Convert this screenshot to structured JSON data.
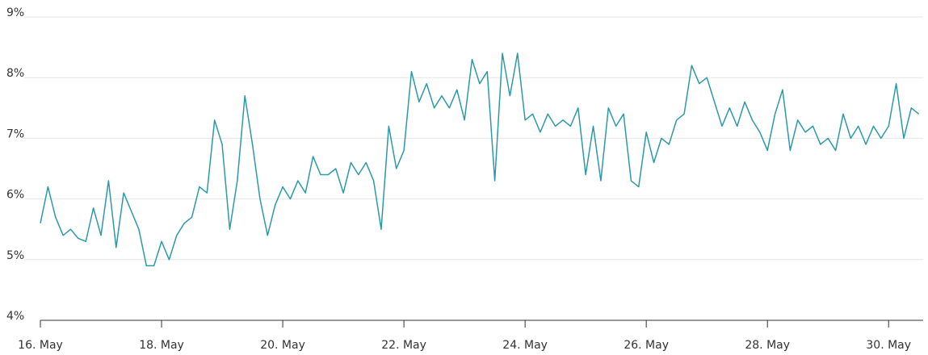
{
  "chart_data": {
    "type": "line",
    "x": [
      16,
      16.125,
      16.25,
      16.375,
      16.5,
      16.625,
      16.75,
      16.875,
      17,
      17.125,
      17.25,
      17.375,
      17.5,
      17.625,
      17.75,
      17.875,
      18,
      18.125,
      18.25,
      18.375,
      18.5,
      18.625,
      18.75,
      18.875,
      19,
      19.125,
      19.25,
      19.375,
      19.5,
      19.625,
      19.75,
      19.875,
      20,
      20.125,
      20.25,
      20.375,
      20.5,
      20.625,
      20.75,
      20.875,
      21,
      21.125,
      21.25,
      21.375,
      21.5,
      21.625,
      21.75,
      21.875,
      22,
      22.125,
      22.25,
      22.375,
      22.5,
      22.625,
      22.75,
      22.875,
      23,
      23.125,
      23.25,
      23.375,
      23.5,
      23.625,
      23.75,
      23.875,
      24,
      24.125,
      24.25,
      24.375,
      24.5,
      24.625,
      24.75,
      24.875,
      25,
      25.125,
      25.25,
      25.375,
      25.5,
      25.625,
      25.75,
      25.875,
      26,
      26.125,
      26.25,
      26.375,
      26.5,
      26.625,
      26.75,
      26.875,
      27,
      27.125,
      27.25,
      27.375,
      27.5,
      27.625,
      27.75,
      27.875,
      28,
      28.125,
      28.25,
      28.375,
      28.5,
      28.625,
      28.75,
      28.875,
      29,
      29.125,
      29.25,
      29.375,
      29.5,
      29.625,
      29.75,
      29.875,
      30,
      30.125,
      30.25,
      30.375,
      30.5
    ],
    "series": [
      {
        "color": "#2b9aa8",
        "values": [
          5.6,
          6.2,
          5.7,
          5.4,
          5.5,
          5.35,
          5.3,
          5.85,
          5.4,
          6.3,
          5.2,
          6.1,
          5.8,
          5.5,
          4.9,
          4.9,
          5.3,
          5.0,
          5.4,
          5.6,
          5.7,
          6.2,
          6.1,
          7.3,
          6.9,
          5.5,
          6.3,
          7.7,
          6.9,
          6.0,
          5.4,
          5.9,
          6.2,
          6.0,
          6.3,
          6.1,
          6.7,
          6.4,
          6.4,
          6.5,
          6.1,
          6.6,
          6.4,
          6.6,
          6.3,
          5.5,
          7.2,
          6.5,
          6.8,
          8.1,
          7.6,
          7.9,
          7.5,
          7.7,
          7.5,
          7.8,
          7.3,
          8.3,
          7.9,
          8.1,
          6.3,
          8.4,
          7.7,
          8.4,
          7.3,
          7.4,
          7.1,
          7.4,
          7.2,
          7.3,
          7.2,
          7.5,
          6.4,
          7.2,
          6.3,
          7.5,
          7.2,
          7.4,
          6.3,
          6.2,
          7.1,
          6.6,
          7.0,
          6.9,
          7.3,
          7.4,
          8.2,
          7.9,
          8.0,
          7.6,
          7.2,
          7.5,
          7.2,
          7.6,
          7.3,
          7.1,
          6.8,
          7.4,
          7.8,
          6.8,
          7.3,
          7.1,
          7.2,
          6.9,
          7.0,
          6.8,
          7.4,
          7.0,
          7.2,
          6.9,
          7.2,
          7.0,
          7.2,
          7.9,
          7.0,
          7.5,
          7.4
        ]
      }
    ],
    "xlim": [
      16,
      30.57
    ],
    "xticks": [
      {
        "value": 16,
        "label": "16. May"
      },
      {
        "value": 18,
        "label": "18. May"
      },
      {
        "value": 20,
        "label": "20. May"
      },
      {
        "value": 22,
        "label": "22. May"
      },
      {
        "value": 24,
        "label": "24. May"
      },
      {
        "value": 26,
        "label": "26. May"
      },
      {
        "value": 28,
        "label": "28. May"
      },
      {
        "value": 30,
        "label": "30. May"
      }
    ],
    "ylim": [
      4,
      9
    ],
    "yticks": [
      {
        "value": 4,
        "label": "4%"
      },
      {
        "value": 5,
        "label": "5%"
      },
      {
        "value": 6,
        "label": "6%"
      },
      {
        "value": 7,
        "label": "7%"
      },
      {
        "value": 8,
        "label": "8%"
      },
      {
        "value": 9,
        "label": "9%"
      }
    ],
    "grid": true
  }
}
